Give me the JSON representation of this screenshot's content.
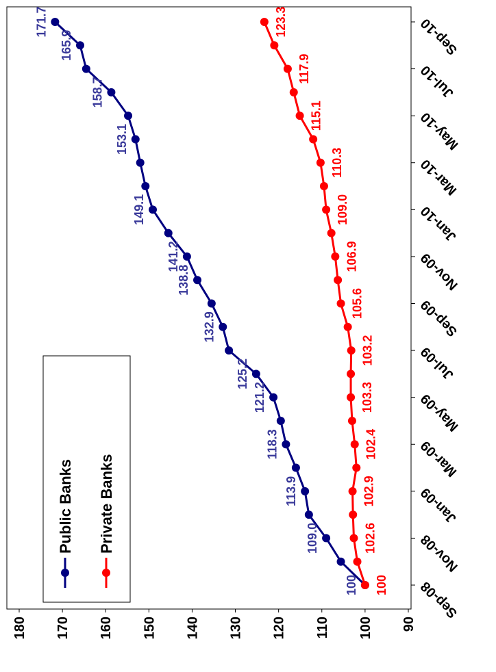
{
  "chart_data": {
    "type": "line",
    "categories": [
      "Sep-08",
      null,
      "Nov-08",
      null,
      "Jan-09",
      null,
      "Mar-09",
      null,
      "May-09",
      null,
      "Jul-09",
      null,
      "Sep-09",
      null,
      "Nov-09",
      null,
      "Jan-10",
      null,
      "Mar-10",
      null,
      "May-10",
      null,
      "Jul-10",
      null,
      "Sep-10"
    ],
    "series": [
      {
        "name": "Public Banks",
        "color": "#000080",
        "label_color": "#3a3a9a",
        "values": [
          100,
          105.6,
          109.0,
          113.0,
          113.9,
          116.0,
          118.3,
          119.5,
          121.2,
          125.2,
          131.5,
          132.9,
          135.5,
          138.8,
          141.2,
          145.5,
          149.1,
          150.8,
          152.0,
          153.1,
          154.8,
          158.7,
          164.5,
          165.9,
          171.7
        ],
        "value_labels": [
          "100",
          null,
          "109.0",
          null,
          "113.9",
          null,
          "118.3",
          null,
          "121.2",
          "125.2",
          null,
          "132.9",
          null,
          "138.8",
          "141.2",
          null,
          "149.1",
          null,
          null,
          "153.1",
          null,
          "158.7",
          null,
          "165.9",
          "171.7"
        ]
      },
      {
        "name": "Private Banks",
        "color": "#ff0000",
        "label_color": "#ff0000",
        "values": [
          100,
          101.8,
          102.6,
          102.8,
          102.9,
          102.0,
          102.4,
          103.0,
          103.3,
          103.3,
          103.2,
          104.0,
          105.6,
          106.3,
          106.9,
          107.8,
          109.0,
          109.5,
          110.3,
          112.0,
          115.1,
          116.5,
          117.9,
          121.0,
          123.3
        ],
        "value_labels": [
          "100",
          null,
          "102.6",
          null,
          "102.9",
          null,
          "102.4",
          null,
          "103.3",
          null,
          "103.2",
          null,
          "105.6",
          null,
          "106.9",
          null,
          "109.0",
          null,
          "110.3",
          null,
          "115.1",
          null,
          "117.9",
          null,
          "123.3"
        ]
      }
    ],
    "ylim": [
      90,
      180
    ],
    "yticks": [
      90,
      100,
      110,
      120,
      130,
      140,
      150,
      160,
      170,
      180
    ]
  }
}
